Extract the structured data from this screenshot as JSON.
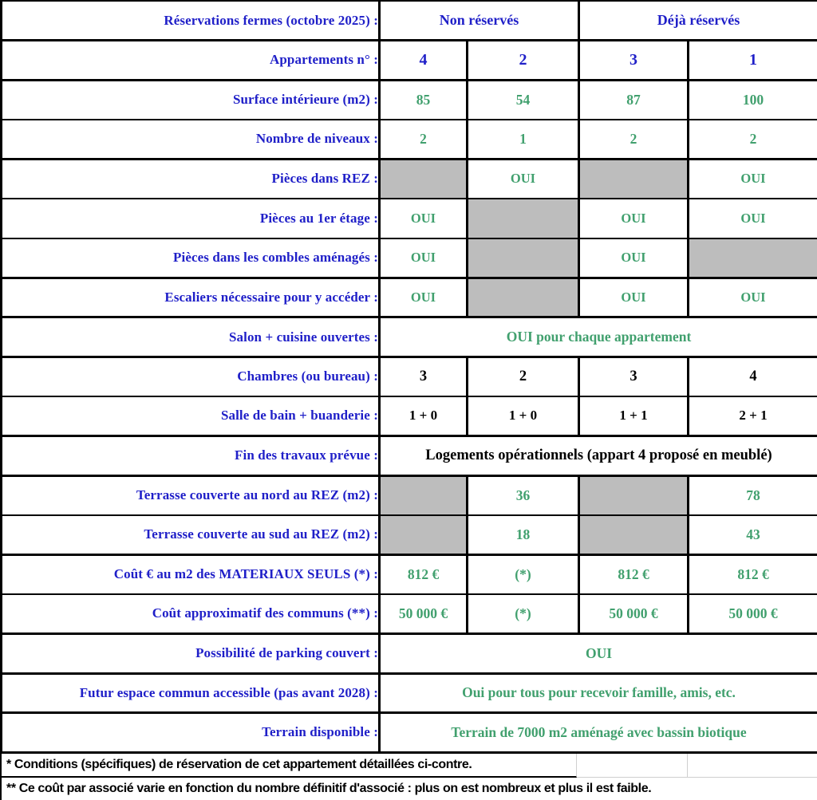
{
  "colors": {
    "blue": "#1f1fc8",
    "green": "#41a06e",
    "gray_fill": "#bdbdbd",
    "border": "#000000"
  },
  "table": {
    "rows": [
      {
        "label": "Réservations fermes (octobre 2025) :",
        "thick": true,
        "cells": [
          {
            "text": "Non réservés",
            "span": 2,
            "style": "blue-header",
            "name": "group-header-non-reserves"
          },
          {
            "text": "Déjà réservés",
            "span": 2,
            "style": "blue-header",
            "name": "group-header-deja-reserves"
          }
        ]
      },
      {
        "label": "Appartements n° :",
        "thick": true,
        "cells": [
          {
            "text": "4",
            "style": "blue-num"
          },
          {
            "text": "2",
            "style": "blue-num"
          },
          {
            "text": "3",
            "style": "blue-num"
          },
          {
            "text": "1",
            "style": "blue-num"
          }
        ]
      },
      {
        "label": "Surface intérieure (m2) :",
        "cells": [
          {
            "text": "85",
            "style": "green-big"
          },
          {
            "text": "54",
            "style": "green-big"
          },
          {
            "text": "87",
            "style": "green-big"
          },
          {
            "text": "100",
            "style": "green-big"
          }
        ]
      },
      {
        "label": "Nombre de niveaux :",
        "thick": true,
        "cells": [
          {
            "text": "2",
            "style": "green-big"
          },
          {
            "text": "1",
            "style": "green-big"
          },
          {
            "text": "2",
            "style": "green-big"
          },
          {
            "text": "2",
            "style": "green-big"
          }
        ]
      },
      {
        "label": "Pièces dans REZ :",
        "cells": [
          {
            "style": "gray"
          },
          {
            "text": "OUI",
            "style": "green"
          },
          {
            "style": "gray"
          },
          {
            "text": "OUI",
            "style": "green"
          }
        ]
      },
      {
        "label": "Pièces au 1er étage :",
        "cells": [
          {
            "text": "OUI",
            "style": "green"
          },
          {
            "style": "gray"
          },
          {
            "text": "OUI",
            "style": "green"
          },
          {
            "text": "OUI",
            "style": "green"
          }
        ]
      },
      {
        "label": "Pièces dans les combles aménagés :",
        "thick": true,
        "cells": [
          {
            "text": "OUI",
            "style": "green"
          },
          {
            "style": "gray"
          },
          {
            "text": "OUI",
            "style": "green"
          },
          {
            "style": "gray"
          }
        ]
      },
      {
        "label": "Escaliers nécessaire pour y accéder :",
        "thick": true,
        "cells": [
          {
            "text": "OUI",
            "style": "green"
          },
          {
            "style": "gray"
          },
          {
            "text": "OUI",
            "style": "green"
          },
          {
            "text": "OUI",
            "style": "green"
          }
        ]
      },
      {
        "label": "Salon + cuisine ouvertes :",
        "thick": true,
        "cells": [
          {
            "text": "OUI pour chaque appartement",
            "span": 4,
            "style": "green-big"
          }
        ]
      },
      {
        "label": "Chambres (ou bureau) :",
        "cells": [
          {
            "text": "3",
            "style": "black-big"
          },
          {
            "text": "2",
            "style": "black-big"
          },
          {
            "text": "3",
            "style": "black-big"
          },
          {
            "text": "4",
            "style": "black-big"
          }
        ]
      },
      {
        "label": "Salle de bain + buanderie :",
        "thick": true,
        "cells": [
          {
            "text": "1 + 0",
            "style": "black"
          },
          {
            "text": "1 + 0",
            "style": "black"
          },
          {
            "text": "1 + 1",
            "style": "black"
          },
          {
            "text": "2 + 1",
            "style": "black"
          }
        ]
      },
      {
        "label": "Fin des travaux prévue :",
        "thick": true,
        "cells": [
          {
            "text": "Logements opérationnels (appart 4 proposé en meublé)",
            "span": 4,
            "style": "black-big"
          }
        ]
      },
      {
        "label": "Terrasse couverte au nord au REZ (m2) :",
        "cells": [
          {
            "style": "gray"
          },
          {
            "text": "36",
            "style": "green-big"
          },
          {
            "style": "gray"
          },
          {
            "text": "78",
            "style": "green-big"
          }
        ]
      },
      {
        "label": "Terrasse couverte au sud au REZ (m2) :",
        "thick": true,
        "cells": [
          {
            "style": "gray"
          },
          {
            "text": "18",
            "style": "green-big"
          },
          {
            "style": "gray"
          },
          {
            "text": "43",
            "style": "green-big"
          }
        ]
      },
      {
        "label": "Coût € au m2 des MATERIAUX SEULS (*) :",
        "cells": [
          {
            "text": "812 €",
            "style": "green-big"
          },
          {
            "text": "(*)",
            "style": "green-big"
          },
          {
            "text": "812 €",
            "style": "green-big"
          },
          {
            "text": "812 €",
            "style": "green-big"
          }
        ]
      },
      {
        "label": "Coût approximatif des communs (**) :",
        "thick": true,
        "cells": [
          {
            "text": "50 000 €",
            "style": "green-big"
          },
          {
            "text": "(*)",
            "style": "green-big"
          },
          {
            "text": "50 000 €",
            "style": "green-big"
          },
          {
            "text": "50 000 €",
            "style": "green-big"
          }
        ]
      },
      {
        "label": "Possibilité de parking couvert :",
        "thick": true,
        "cells": [
          {
            "text": "OUI",
            "span": 4,
            "style": "green-big"
          }
        ]
      },
      {
        "label": "Futur espace commun accessible (pas avant 2028) :",
        "thick": true,
        "cells": [
          {
            "text": "Oui pour tous pour recevoir famille, amis, etc.",
            "span": 4,
            "style": "green-big"
          }
        ]
      },
      {
        "label": "Terrain disponible :",
        "thick": true,
        "cells": [
          {
            "text": "Terrain de 7000 m2 aménagé avec bassin biotique",
            "span": 4,
            "style": "green-big"
          }
        ]
      }
    ]
  },
  "footnotes": [
    "* Conditions (spécifiques) de réservation de cet appartement détaillées ci-contre.",
    "** Ce coût par associé varie en fonction du nombre définitif d'associé : plus on est nombreux et plus il est faible."
  ]
}
